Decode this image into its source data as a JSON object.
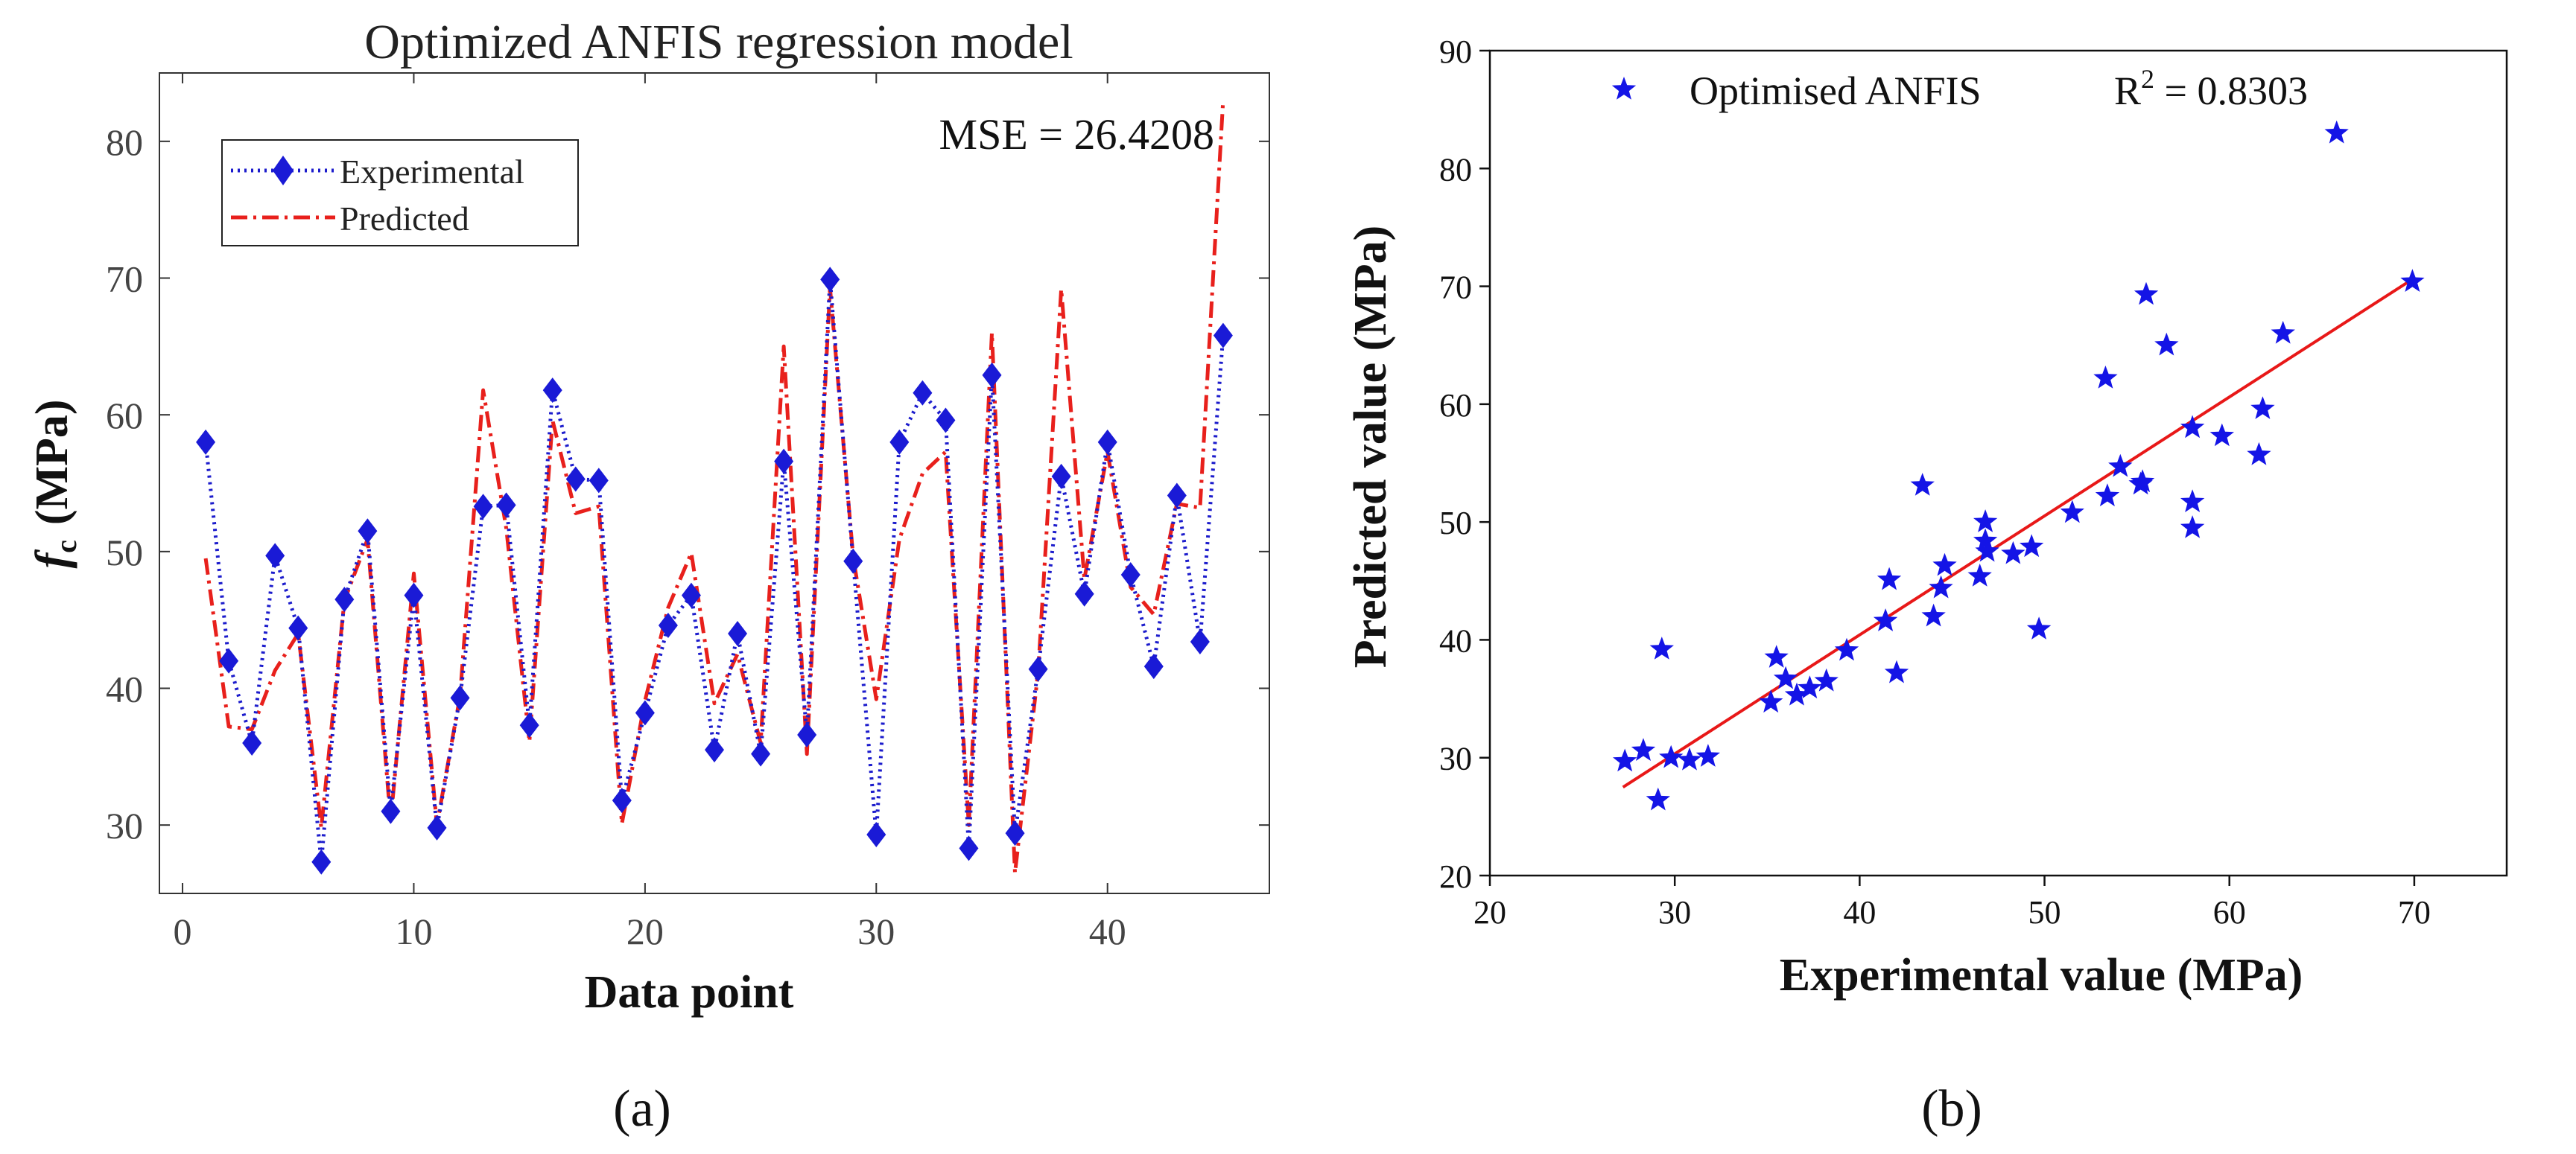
{
  "chart_data": [
    {
      "type": "line",
      "title": "Optimized ANFIS regression model",
      "xlabel": "Data point",
      "ylabel": "f",
      "ylabel_sub": "c",
      "ylabel_unit": "(MPa)",
      "xlim": [
        -1,
        47
      ],
      "ylim": [
        25,
        85
      ],
      "xticks": [
        0,
        10,
        20,
        30,
        40
      ],
      "yticks": [
        30,
        40,
        50,
        60,
        70,
        80
      ],
      "annotation": "MSE = 26.4208",
      "legend_position": "top-left",
      "series": [
        {
          "name": "Experimental",
          "style": "dotted-diamond",
          "color": "#1c1ccc",
          "x": [
            1,
            2,
            3,
            4,
            5,
            6,
            7,
            8,
            9,
            10,
            11,
            12,
            13,
            14,
            15,
            16,
            17,
            18,
            19,
            20,
            21,
            22,
            23,
            24,
            25,
            26,
            27,
            28,
            29,
            30,
            31,
            32,
            33,
            34,
            35,
            36,
            37,
            38,
            39,
            40,
            41,
            42,
            43,
            44,
            45
          ],
          "values": [
            58.0,
            42.0,
            36.0,
            49.7,
            44.4,
            27.3,
            46.5,
            51.5,
            31.0,
            46.8,
            29.8,
            39.3,
            53.3,
            53.4,
            37.3,
            61.8,
            55.3,
            55.2,
            31.8,
            38.2,
            44.6,
            46.8,
            35.5,
            44.0,
            35.2,
            56.6,
            36.6,
            69.9,
            49.3,
            29.3,
            58.0,
            61.6,
            59.6,
            28.3,
            62.9,
            29.4,
            41.4,
            55.5,
            46.9,
            58.0,
            48.3,
            41.6,
            54.1,
            43.4,
            65.8
          ]
        },
        {
          "name": "Predicted",
          "style": "dash-dot",
          "color": "#e8201c",
          "x": [
            1,
            2,
            3,
            4,
            5,
            6,
            7,
            8,
            9,
            10,
            11,
            12,
            13,
            14,
            15,
            16,
            17,
            18,
            19,
            20,
            21,
            22,
            23,
            24,
            25,
            26,
            27,
            28,
            29,
            30,
            31,
            32,
            33,
            34,
            35,
            36,
            37,
            38,
            39,
            40,
            41,
            42,
            43,
            44,
            45
          ],
          "values": [
            49.5,
            37.2,
            37.0,
            41.3,
            44.0,
            29.8,
            46.4,
            50.9,
            30.3,
            48.4,
            30.0,
            39.4,
            61.8,
            51.7,
            36.1,
            59.6,
            52.8,
            53.3,
            30.1,
            39.1,
            45.9,
            49.9,
            38.9,
            42.5,
            36.0,
            65.0,
            35.2,
            69.3,
            49.6,
            39.2,
            50.9,
            55.7,
            57.3,
            30.0,
            66.0,
            26.5,
            41.2,
            69.2,
            48.0,
            57.3,
            47.4,
            45.4,
            53.5,
            53.2,
            83.0
          ]
        }
      ],
      "caption": "(a)"
    },
    {
      "type": "scatter",
      "title": "",
      "xlabel": "Experimental value (MPa)",
      "ylabel": "Predicted value (MPa)",
      "xlim": [
        20,
        75
      ],
      "ylim": [
        20,
        90
      ],
      "xticks": [
        20,
        30,
        40,
        50,
        60,
        70
      ],
      "yticks": [
        20,
        30,
        40,
        50,
        60,
        70,
        80,
        90
      ],
      "legend_position": "top-left",
      "series": [
        {
          "name": "Optimised ANFIS",
          "marker": "star",
          "color": "#1414e6",
          "x": [
            27.3,
            28.3,
            29.1,
            29.3,
            29.8,
            30.8,
            31.8,
            35.2,
            35.5,
            36.0,
            36.6,
            37.3,
            38.2,
            39.3,
            41.4,
            41.6,
            42.0,
            43.4,
            44.0,
            44.4,
            44.6,
            46.5,
            46.8,
            46.8,
            46.9,
            48.3,
            49.3,
            49.7,
            51.5,
            53.3,
            53.4,
            54.1,
            55.2,
            55.3,
            55.5,
            56.6,
            58.0,
            58.0,
            58.0,
            59.6,
            61.6,
            61.8,
            62.9,
            65.8,
            69.9
          ],
          "y": [
            29.7,
            30.6,
            26.4,
            39.2,
            30.0,
            29.8,
            30.1,
            34.7,
            38.5,
            36.7,
            35.3,
            35.9,
            36.5,
            39.1,
            41.6,
            45.1,
            37.2,
            53.1,
            42.0,
            44.4,
            46.3,
            45.4,
            48.4,
            50.0,
            47.5,
            47.3,
            47.9,
            40.9,
            50.8,
            62.2,
            52.2,
            54.7,
            53.2,
            53.4,
            69.3,
            65.0,
            58.0,
            51.7,
            49.5,
            57.3,
            55.7,
            59.6,
            66.0,
            83.0,
            70.4
          ]
        }
      ],
      "fit_line": {
        "x": [
          27.2,
          69.9
        ],
        "y": [
          27.5,
          70.6
        ],
        "color": "#e81818"
      },
      "annotation": "R",
      "annotation_sup": "2",
      "annotation_value": " = 0.8303",
      "caption": "(b)"
    }
  ]
}
